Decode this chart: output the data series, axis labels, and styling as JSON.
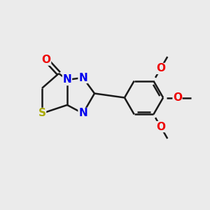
{
  "background_color": "#ebebeb",
  "bond_color": "#1a1a1a",
  "bond_width": 1.8,
  "atom_colors": {
    "N": "#0000ee",
    "O": "#ee0000",
    "S": "#aaaa00",
    "C": "#1a1a1a"
  },
  "font_size_atom": 11,
  "font_size_methyl": 9,
  "figsize": [
    3.0,
    3.0
  ],
  "dpi": 100
}
